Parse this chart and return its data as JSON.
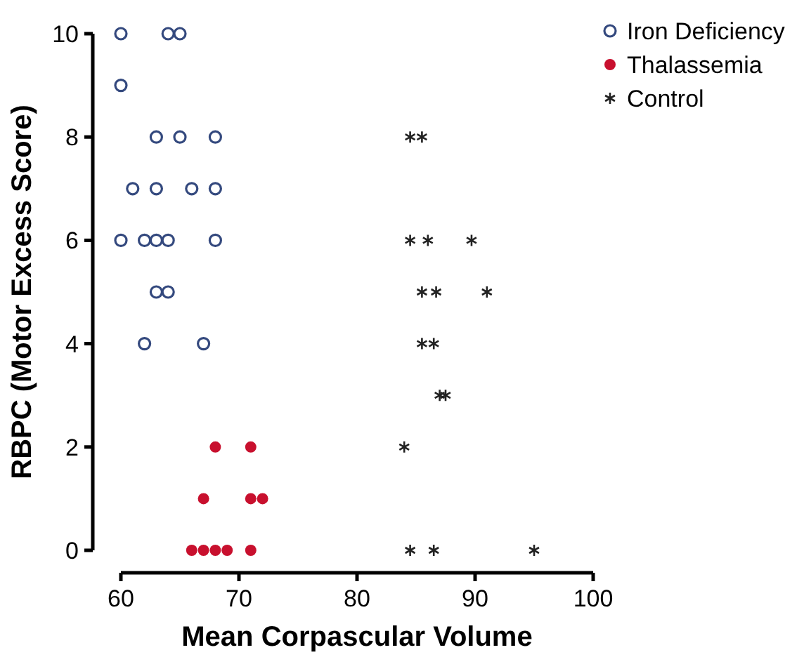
{
  "chart_data": {
    "type": "scatter",
    "xlabel": "Mean Corpascular Volume",
    "ylabel": "RBPC (Motor Excess Score)",
    "xlim": [
      60,
      100
    ],
    "ylim": [
      0,
      10
    ],
    "xticks": [
      60,
      70,
      80,
      90,
      100
    ],
    "yticks": [
      0,
      2,
      4,
      6,
      8,
      10
    ],
    "legend": "top right",
    "grid": false,
    "series": [
      {
        "name": "Iron Deficiency",
        "color": "#34497e",
        "marker": "circle",
        "x": [
          60,
          64,
          65,
          60,
          63,
          65,
          68,
          61,
          63,
          66,
          68,
          60,
          62,
          63,
          64,
          68,
          63,
          64,
          62,
          67
        ],
        "values": [
          10,
          10,
          10,
          9,
          8,
          8,
          8,
          7,
          7,
          7,
          7,
          6,
          6,
          6,
          6,
          6,
          5,
          5,
          4,
          4
        ]
      },
      {
        "name": "Thalassemia",
        "color": "#c8102e",
        "marker": "circle",
        "x": [
          68,
          71,
          67,
          71,
          72,
          66,
          67,
          68,
          69,
          71
        ],
        "values": [
          2,
          2,
          1,
          1,
          1,
          0,
          0,
          0,
          0,
          0
        ]
      },
      {
        "name": "Control",
        "color": "#222222",
        "marker": "cross",
        "x": [
          84.5,
          85.5,
          84.5,
          86,
          89.7,
          85.5,
          86.7,
          91,
          85.5,
          86.5,
          87,
          87.5,
          84,
          84.5,
          86.5,
          95
        ],
        "values": [
          8,
          8,
          6,
          6,
          6,
          5,
          5,
          5,
          4,
          4,
          3,
          3,
          2,
          0,
          0,
          0
        ]
      }
    ]
  }
}
